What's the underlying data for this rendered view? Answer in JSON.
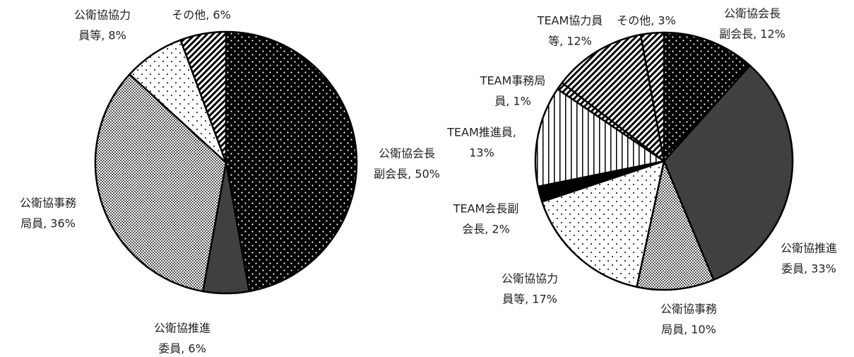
{
  "chart_data": [
    {
      "type": "pie",
      "labels": [
        [
          "公衛協会長",
          "副会長, 50%"
        ],
        [
          "公衛協推進",
          "委員, 6%"
        ],
        [
          "公衛協事務",
          "局員, 36%"
        ],
        [
          "公衛協協力",
          "員等, 8%"
        ],
        [
          "その他, 6%"
        ]
      ],
      "values": [
        50,
        6,
        36,
        8,
        6
      ],
      "patterns": [
        "dots-on-black",
        "solid-dark",
        "checker",
        "dots-on-white",
        "diagonal"
      ]
    },
    {
      "type": "pie",
      "labels": [
        [
          "公衛協会長",
          "副会長, 12%"
        ],
        [
          "公衛協推進",
          "委員, 33%"
        ],
        [
          "公衛協事務",
          "局員, 10%"
        ],
        [
          "公衛協協力",
          "員等, 17%"
        ],
        [
          "TEAM会長副",
          "会長, 2%"
        ],
        [
          "TEAM推進員,",
          "13%"
        ],
        [
          "TEAM事務局",
          "員, 1%"
        ],
        [
          "TEAM協力員",
          "等, 12%"
        ],
        [
          "その他, 3%"
        ]
      ],
      "values": [
        12,
        33,
        10,
        17,
        2,
        13,
        1,
        12,
        3
      ],
      "patterns": [
        "dots-on-black",
        "solid-dark",
        "checker",
        "dots-on-white",
        "solid-black",
        "vertical",
        "diagonal",
        "diagonal",
        "diagonal"
      ]
    }
  ]
}
